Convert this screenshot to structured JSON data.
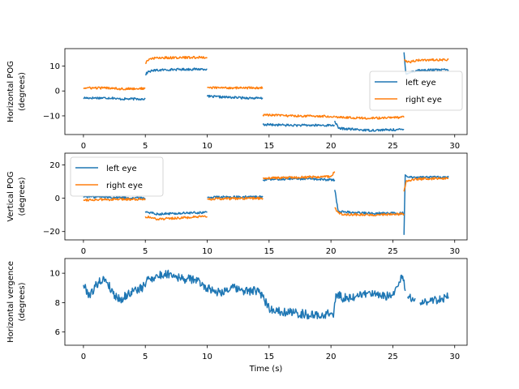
{
  "chart_data": [
    {
      "type": "line",
      "xlabel": "",
      "ylabel": [
        "Horizontal POG",
        "(degrees)"
      ],
      "xlim": [
        -1.5,
        31.0
      ],
      "ylim": [
        -17.5,
        17.0
      ],
      "xticks": [
        0,
        5,
        10,
        15,
        20,
        25,
        30
      ],
      "yticks": [
        -10,
        0,
        10
      ],
      "legend": {
        "position": "right",
        "entries": [
          "left eye",
          "right eye"
        ]
      },
      "series": [
        {
          "name": "left eye",
          "color": "#1f77b4",
          "noise": 0.45,
          "segments": [
            [
              [
                0,
                -2.8
              ],
              [
                2.5,
                -2.8
              ],
              [
                2.6,
                -3.2
              ],
              [
                5.0,
                -3.2
              ]
            ],
            [
              [
                5.0,
                6.5
              ],
              [
                5.2,
                7.6
              ],
              [
                5.6,
                8.2
              ],
              [
                7.0,
                8.6
              ],
              [
                10.0,
                8.8
              ]
            ],
            [
              [
                10.0,
                -2.2
              ],
              [
                12.0,
                -2.6
              ],
              [
                14.5,
                -3.0
              ]
            ],
            [
              [
                14.5,
                -13.5
              ],
              [
                17.0,
                -13.8
              ],
              [
                20.3,
                -13.8
              ]
            ],
            [
              [
                20.3,
                -12.0
              ],
              [
                20.6,
                -15.0
              ],
              [
                23.0,
                -15.8
              ],
              [
                25.9,
                -15.5
              ]
            ],
            [
              [
                25.9,
                15.5
              ],
              [
                26.05,
                7.0
              ],
              [
                27.0,
                8.3
              ],
              [
                29.5,
                8.5
              ]
            ]
          ]
        },
        {
          "name": "right eye",
          "color": "#ff7f0e",
          "noise": 0.45,
          "segments": [
            [
              [
                0,
                1.2
              ],
              [
                2.5,
                1.2
              ],
              [
                3.0,
                0.8
              ],
              [
                5.0,
                1.0
              ]
            ],
            [
              [
                5.0,
                11.0
              ],
              [
                5.3,
                12.8
              ],
              [
                6.0,
                13.3
              ],
              [
                10.0,
                13.5
              ]
            ],
            [
              [
                10.0,
                1.3
              ],
              [
                14.5,
                1.2
              ]
            ],
            [
              [
                14.5,
                -9.6
              ],
              [
                17.0,
                -10.0
              ],
              [
                20.3,
                -10.2
              ]
            ],
            [
              [
                20.3,
                -10.4
              ],
              [
                23.0,
                -11.0
              ],
              [
                25.9,
                -10.6
              ]
            ],
            [
              [
                25.9,
                12.5
              ],
              [
                26.2,
                11.5
              ],
              [
                27.0,
                12.3
              ],
              [
                29.5,
                12.6
              ]
            ]
          ]
        }
      ]
    },
    {
      "type": "line",
      "xlabel": "",
      "ylabel": [
        "Vertical POG",
        "(degrees)"
      ],
      "xlim": [
        -1.5,
        31.0
      ],
      "ylim": [
        -25.0,
        27.0
      ],
      "xticks": [
        0,
        5,
        10,
        15,
        20,
        25,
        30
      ],
      "yticks": [
        -20,
        0,
        20
      ],
      "legend": {
        "position": "top-left",
        "entries": [
          "left eye",
          "right eye"
        ]
      },
      "series": [
        {
          "name": "left eye",
          "color": "#1f77b4",
          "noise": 0.7,
          "segments": [
            [
              [
                0,
                1.0
              ],
              [
                5.0,
                0.0
              ]
            ],
            [
              [
                5.0,
                -8.0
              ],
              [
                6.0,
                -9.5
              ],
              [
                10.0,
                -8.5
              ]
            ],
            [
              [
                10.0,
                0.5
              ],
              [
                14.5,
                0.8
              ]
            ],
            [
              [
                14.5,
                11.0
              ],
              [
                17.0,
                11.8
              ],
              [
                20.3,
                11.0
              ]
            ],
            [
              [
                20.3,
                5.0
              ],
              [
                20.6,
                -8.0
              ],
              [
                23.0,
                -9.0
              ],
              [
                25.9,
                -9.0
              ]
            ],
            [
              [
                25.9,
                -22.0
              ],
              [
                26.0,
                14.0
              ],
              [
                26.3,
                12.5
              ],
              [
                29.5,
                12.5
              ]
            ]
          ]
        },
        {
          "name": "right eye",
          "color": "#ff7f0e",
          "noise": 0.7,
          "segments": [
            [
              [
                0,
                -1.0
              ],
              [
                5.0,
                -0.5
              ]
            ],
            [
              [
                5.0,
                -11.0
              ],
              [
                6.0,
                -12.5
              ],
              [
                10.0,
                -11.0
              ]
            ],
            [
              [
                10.0,
                -0.5
              ],
              [
                14.5,
                0.0
              ]
            ],
            [
              [
                14.5,
                12.0
              ],
              [
                17.0,
                12.5
              ],
              [
                20.0,
                13.0
              ],
              [
                20.3,
                16.0
              ]
            ],
            [
              [
                20.3,
                -6.0
              ],
              [
                20.7,
                -9.5
              ],
              [
                23.0,
                -10.0
              ],
              [
                25.9,
                -9.5
              ]
            ],
            [
              [
                25.9,
                4.0
              ],
              [
                26.1,
                10.5
              ],
              [
                27.0,
                11.5
              ],
              [
                29.5,
                12.0
              ]
            ]
          ]
        }
      ]
    },
    {
      "type": "line",
      "xlabel": "Time (s)",
      "ylabel": [
        "Horizontal vergence",
        "(degrees)"
      ],
      "xlim": [
        -1.5,
        31.0
      ],
      "ylim": [
        5.1,
        11.0
      ],
      "xticks": [
        0,
        5,
        10,
        15,
        20,
        25,
        30
      ],
      "yticks": [
        6,
        8,
        10
      ],
      "legend": null,
      "series": [
        {
          "name": "",
          "color": "#1f77b4",
          "noise": 0.3,
          "segments": [
            [
              [
                0,
                9.2
              ],
              [
                0.5,
                8.5
              ],
              [
                1.2,
                9.4
              ],
              [
                1.8,
                9.6
              ],
              [
                2.4,
                8.6
              ],
              [
                3.0,
                8.2
              ],
              [
                4.0,
                8.8
              ],
              [
                4.8,
                9.0
              ],
              [
                5.2,
                9.6
              ],
              [
                6.0,
                9.8
              ],
              [
                7.0,
                10.0
              ],
              [
                8.0,
                9.6
              ],
              [
                9.0,
                9.6
              ],
              [
                10.0,
                9.0
              ],
              [
                11.0,
                8.7
              ],
              [
                12.0,
                9.0
              ],
              [
                13.0,
                8.8
              ],
              [
                14.0,
                8.8
              ],
              [
                14.5,
                8.4
              ],
              [
                15.0,
                7.6
              ],
              [
                16.0,
                7.4
              ],
              [
                17.0,
                7.3
              ],
              [
                18.0,
                7.2
              ],
              [
                19.0,
                7.1
              ],
              [
                20.0,
                7.3
              ],
              [
                20.2,
                7.0
              ],
              [
                20.4,
                8.6
              ],
              [
                21.0,
                8.3
              ],
              [
                22.0,
                8.4
              ],
              [
                23.0,
                8.7
              ],
              [
                24.0,
                8.4
              ],
              [
                25.0,
                8.5
              ],
              [
                25.8,
                9.8
              ],
              [
                26.0,
                8.8
              ]
            ],
            [
              [
                26.2,
                8.4
              ],
              [
                26.8,
                8.3
              ]
            ],
            [
              [
                27.2,
                8.0
              ],
              [
                28.0,
                8.1
              ],
              [
                29.0,
                8.3
              ],
              [
                29.5,
                8.4
              ]
            ]
          ]
        }
      ]
    }
  ]
}
